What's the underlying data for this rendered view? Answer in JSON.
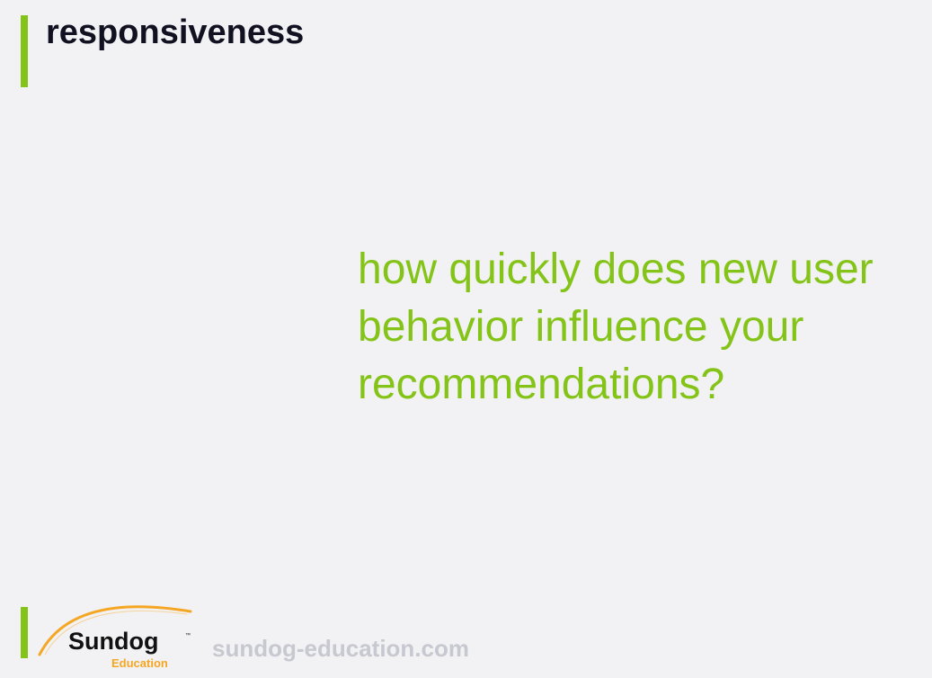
{
  "slide": {
    "title": "responsiveness",
    "question": "how quickly does new user behavior influence your recommendations?"
  },
  "footer": {
    "logo_wordmark": "Sundog",
    "logo_trademark": "™",
    "logo_sub": "Education",
    "url": "sundog-education.com"
  },
  "colors": {
    "accent": "#84c318",
    "title": "#111122",
    "background": "#f2f2f4",
    "logo_orange": "#f5a623",
    "url_gray": "#c7c8d0"
  }
}
